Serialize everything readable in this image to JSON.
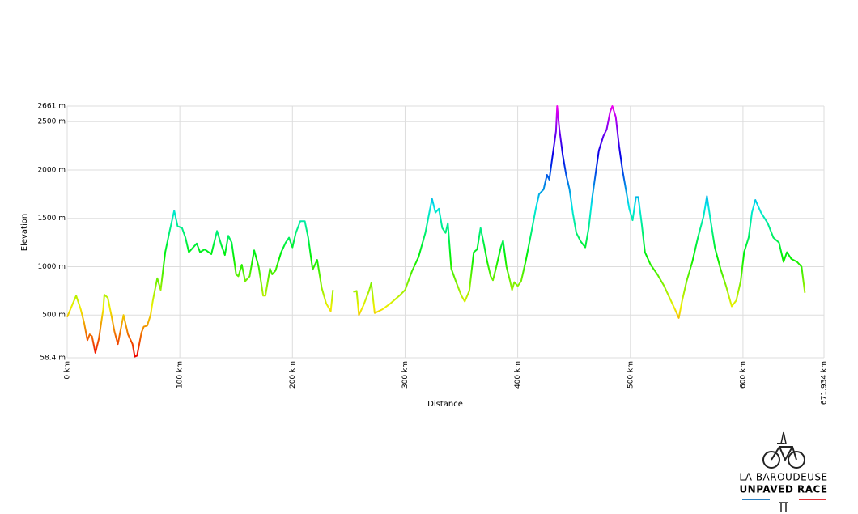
{
  "chart_data": {
    "type": "line",
    "y_label": "Elevation",
    "x_label": "Distance",
    "x": [
      0,
      5,
      8,
      12,
      15,
      18,
      20,
      22,
      25,
      28,
      32,
      33,
      36,
      40,
      42,
      45,
      50,
      54,
      58,
      60,
      62,
      66,
      68,
      71,
      74,
      76,
      80,
      83,
      87,
      91,
      95,
      98,
      102,
      105,
      108,
      115,
      118,
      122,
      128,
      133,
      137,
      140,
      143,
      146,
      150,
      152,
      155,
      158,
      162,
      166,
      170,
      174,
      176,
      180,
      182,
      185,
      190,
      194,
      197,
      200,
      203,
      207,
      211,
      214,
      218,
      222,
      226,
      230,
      234,
      236,
      245,
      254,
      257,
      259,
      263,
      268,
      270,
      273,
      280,
      287,
      295,
      300,
      306,
      312,
      318,
      322,
      324,
      327,
      330,
      333,
      336,
      338,
      341,
      345,
      350,
      353,
      357,
      361,
      364,
      367,
      370,
      373,
      376,
      378,
      381,
      385,
      387,
      390,
      393,
      395,
      397,
      400,
      403,
      407,
      412,
      416,
      419,
      423,
      426,
      428,
      431,
      434,
      435,
      437,
      440,
      443,
      446,
      449,
      452,
      456,
      460,
      463,
      466,
      469,
      472,
      476,
      479,
      482,
      484,
      487,
      490,
      493,
      496,
      499,
      502,
      505,
      507,
      510,
      513,
      518,
      524,
      530,
      536,
      540,
      543,
      546,
      550,
      555,
      560,
      565,
      568,
      571,
      575,
      580,
      585,
      590,
      594,
      598,
      601,
      605,
      608,
      611,
      616,
      622,
      627,
      632,
      636,
      639,
      643,
      648,
      652,
      655
    ],
    "values": [
      480,
      620,
      700,
      560,
      420,
      240,
      300,
      280,
      110,
      250,
      560,
      710,
      680,
      450,
      330,
      200,
      500,
      300,
      200,
      70,
      80,
      320,
      380,
      390,
      500,
      650,
      880,
      760,
      1150,
      1370,
      1580,
      1420,
      1400,
      1300,
      1150,
      1240,
      1150,
      1180,
      1130,
      1370,
      1220,
      1120,
      1320,
      1250,
      920,
      900,
      1020,
      850,
      900,
      1170,
      1000,
      700,
      700,
      980,
      920,
      960,
      1150,
      1250,
      1300,
      1200,
      1350,
      1470,
      1470,
      1300,
      970,
      1070,
      780,
      620,
      540,
      760,
      null,
      740,
      750,
      500,
      600,
      750,
      830,
      520,
      560,
      620,
      700,
      760,
      950,
      1100,
      1350,
      1590,
      1700,
      1560,
      1600,
      1400,
      1350,
      1450,
      980,
      850,
      700,
      640,
      750,
      1150,
      1180,
      1400,
      1230,
      1050,
      900,
      860,
      1000,
      1200,
      1270,
      1000,
      860,
      760,
      840,
      800,
      850,
      1050,
      1350,
      1600,
      1750,
      1800,
      1950,
      1900,
      2150,
      2400,
      2661,
      2420,
      2150,
      1950,
      1800,
      1550,
      1350,
      1260,
      1200,
      1400,
      1700,
      1950,
      2200,
      2350,
      2420,
      2600,
      2661,
      2550,
      2250,
      2000,
      1800,
      1600,
      1480,
      1720,
      1720,
      1450,
      1150,
      1020,
      920,
      800,
      650,
      550,
      470,
      650,
      850,
      1050,
      1300,
      1520,
      1730,
      1500,
      1200,
      980,
      800,
      590,
      650,
      850,
      1150,
      1300,
      1560,
      1690,
      1560,
      1450,
      1300,
      1250,
      1050,
      1150,
      1080,
      1050,
      1000,
      730
    ],
    "xlim": [
      0,
      671.934
    ],
    "xticks": [
      {
        "value": 0,
        "label": "0 km"
      },
      {
        "value": 100,
        "label": "100 km"
      },
      {
        "value": 200,
        "label": "200 km"
      },
      {
        "value": 300,
        "label": "300 km"
      },
      {
        "value": 400,
        "label": "400 km"
      },
      {
        "value": 500,
        "label": "500 km"
      },
      {
        "value": 600,
        "label": "600 km"
      },
      {
        "value": 671.934,
        "label": "671.934 km"
      }
    ],
    "ylim": [
      58.4,
      2661
    ],
    "yticks": [
      {
        "value": 58.4,
        "label": "58.4 m"
      },
      {
        "value": 500,
        "label": "500 m"
      },
      {
        "value": 1000,
        "label": "1000 m"
      },
      {
        "value": 1500,
        "label": "1500 m"
      },
      {
        "value": 2000,
        "label": "2000 m"
      },
      {
        "value": 2500,
        "label": "2500 m"
      },
      {
        "value": 2661,
        "label": "2661 m"
      }
    ],
    "grid": true
  },
  "logo": {
    "line1": "LA BAROUDEUSE",
    "line2": "UNPAVED RACE"
  }
}
